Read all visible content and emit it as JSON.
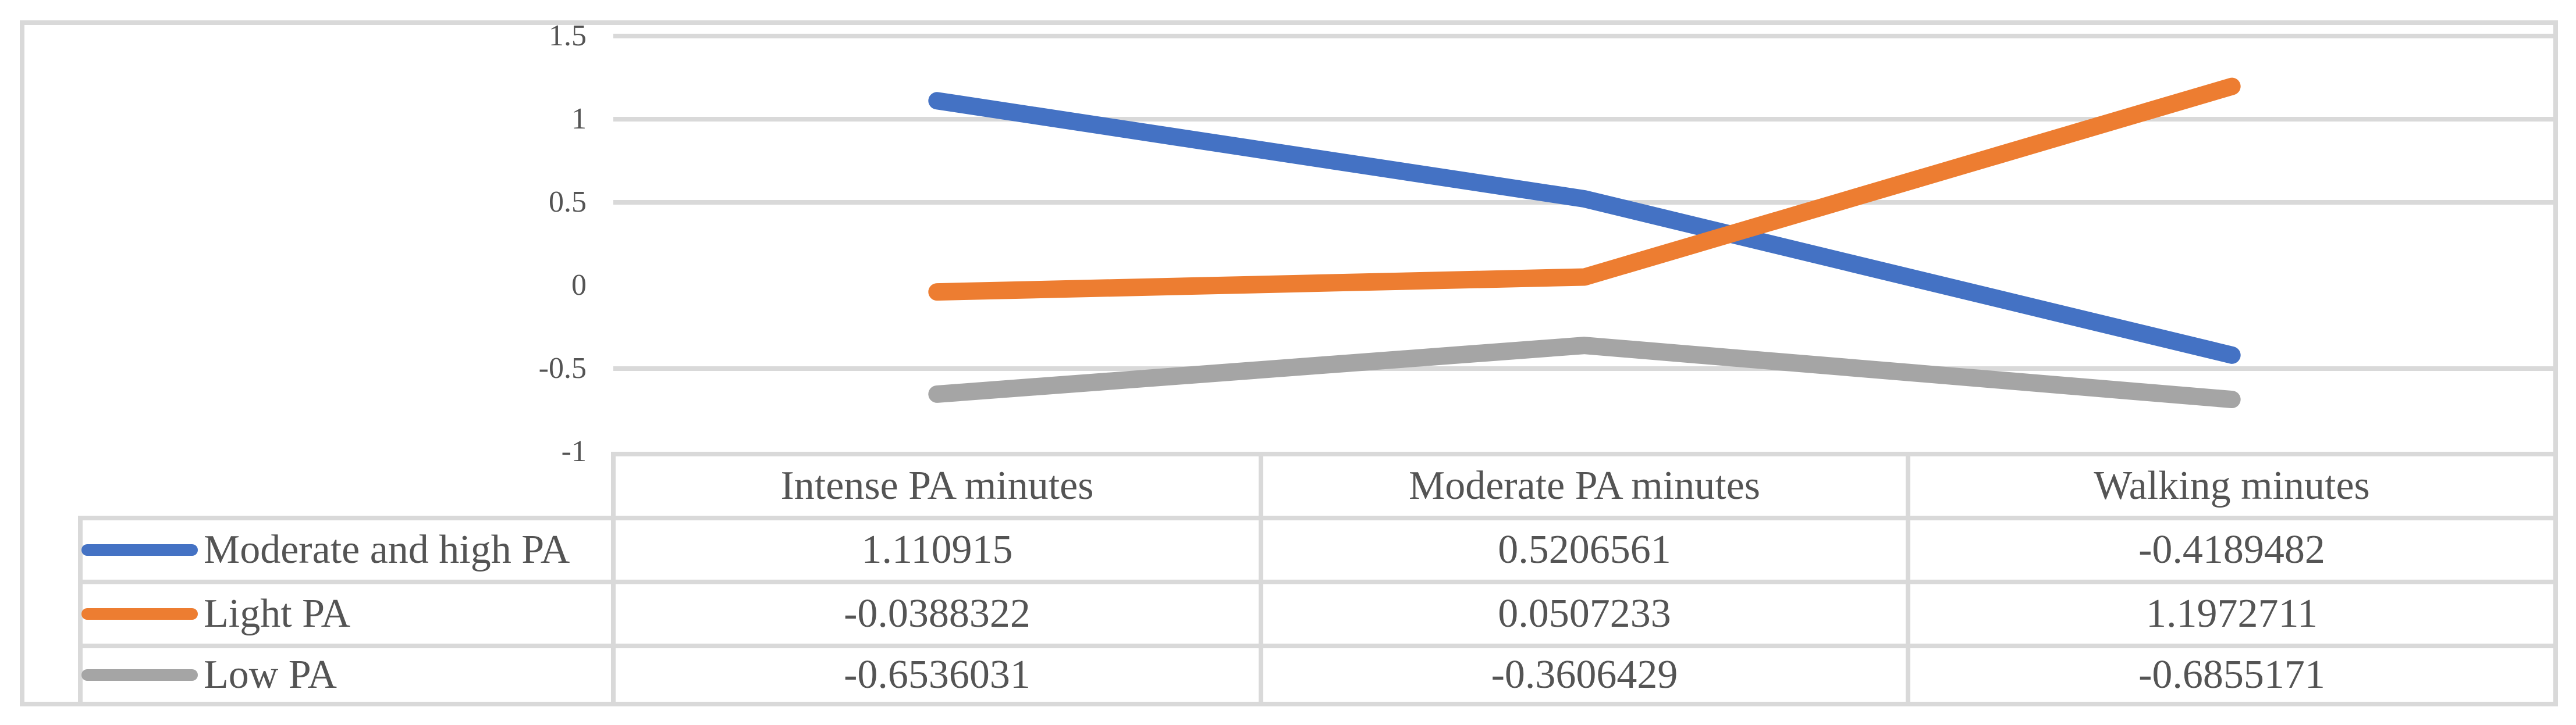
{
  "figure": {
    "background_color": "#FFFFFF",
    "border_color": "#D9D9D9"
  },
  "chart_data": {
    "type": "line",
    "title": "",
    "categories": [
      "Intense PA minutes",
      "Moderate PA minutes",
      "Walking minutes"
    ],
    "series": [
      {
        "name": "Moderate and high PA",
        "color": "#4472C4",
        "values": [
          1.110915,
          0.5206561,
          -0.4189482
        ]
      },
      {
        "name": "Light PA",
        "color": "#ED7D31",
        "values": [
          -0.0388322,
          0.0507233,
          1.1972711
        ]
      },
      {
        "name": "Low PA",
        "color": "#A5A5A5",
        "values": [
          -0.6536031,
          -0.3606429,
          -0.6855171
        ]
      }
    ],
    "y_axis": {
      "min": -1,
      "max": 1.5,
      "tick_labels": [
        "1.5",
        "1",
        "0.5",
        "0",
        "-0.5",
        "-1"
      ],
      "tick_values": [
        1.5,
        1,
        0.5,
        0,
        -0.5,
        -1
      ],
      "gridline_values": [
        1.5,
        1,
        0.5,
        -0.5
      ]
    },
    "grid_on": true,
    "gridline_color": "#D9D9D9",
    "table_border_color": "#D9D9D9",
    "text_color": "#545454",
    "legend_position": "data-table-left",
    "data_table_shown": true
  }
}
